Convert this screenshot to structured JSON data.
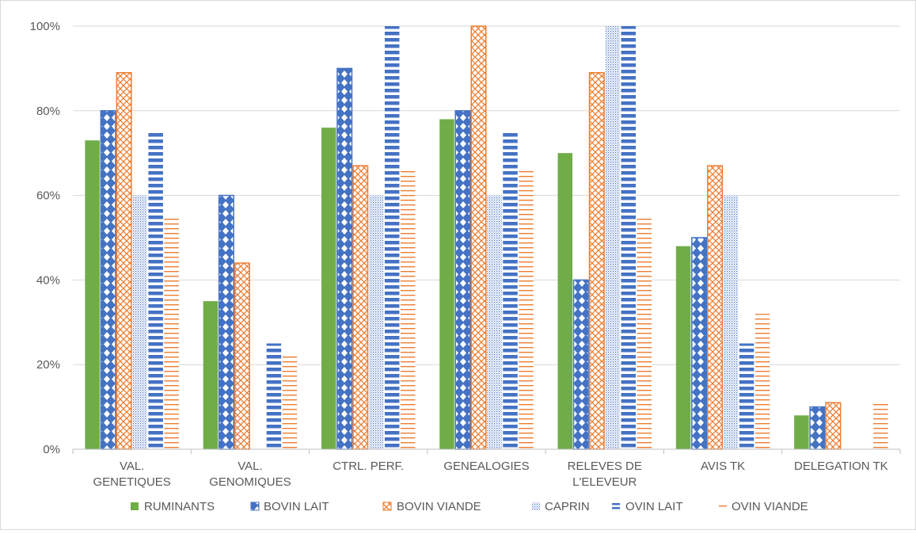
{
  "chart_data": {
    "type": "bar",
    "title": "",
    "xlabel": "",
    "ylabel": "",
    "ylim": [
      0,
      100
    ],
    "yticks": [
      0,
      20,
      40,
      60,
      80,
      100
    ],
    "y_tick_format": "percent",
    "grid": true,
    "legend_position": "bottom",
    "categories": [
      [
        "VAL.",
        "GENETIQUES"
      ],
      [
        "VAL.",
        "GENOMIQUES"
      ],
      [
        "CTRL. PERF."
      ],
      [
        "GENEALOGIES"
      ],
      [
        "RELEVES DE",
        "L'ELEVEUR"
      ],
      [
        "AVIS TK"
      ],
      [
        "DELEGATION TK"
      ]
    ],
    "series": [
      {
        "name": "RUMINANTS",
        "color": "#70ad47",
        "pattern": "solid",
        "values": [
          73,
          35,
          76,
          78,
          70,
          48,
          8
        ]
      },
      {
        "name": "BOVIN LAIT",
        "color": "#4472c4",
        "pattern": "diamonds",
        "values": [
          80,
          60,
          90,
          80,
          40,
          50,
          10
        ]
      },
      {
        "name": "BOVIN VIANDE",
        "color": "#ed7d31",
        "pattern": "crosshatch",
        "values": [
          89,
          44,
          67,
          100,
          89,
          67,
          11
        ]
      },
      {
        "name": "CAPRIN",
        "color": "#4472c4",
        "pattern": "dots",
        "values": [
          60,
          0,
          60,
          60,
          100,
          60,
          0
        ]
      },
      {
        "name": "OVIN LAIT",
        "color": "#4472c4",
        "pattern": "hstripes-thick",
        "values": [
          75,
          25,
          100,
          75,
          100,
          25,
          0
        ]
      },
      {
        "name": "OVIN VIANDE",
        "color": "#ed7d31",
        "pattern": "hstripes-thin",
        "values": [
          55,
          22,
          66,
          66,
          55,
          32,
          11
        ]
      }
    ]
  }
}
